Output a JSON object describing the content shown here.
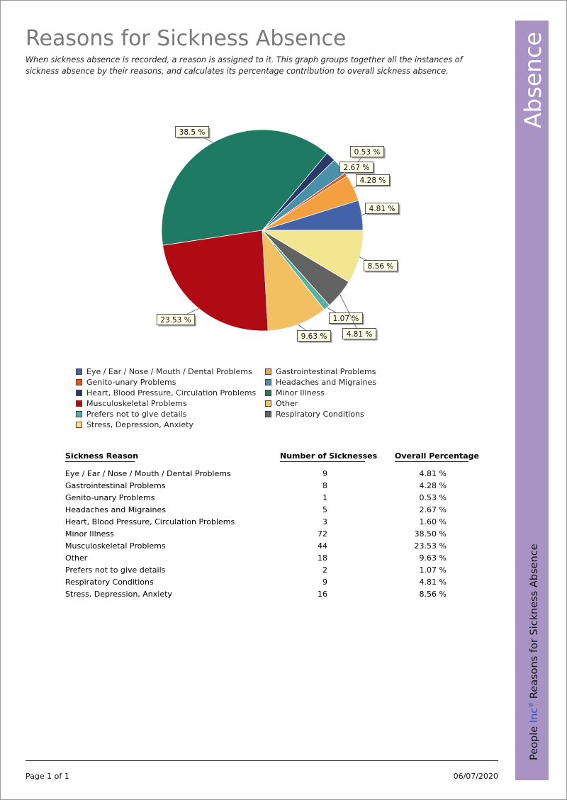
{
  "header": {
    "title": "Reasons for Sickness Absence",
    "subtitle": "When sickness absence is recorded, a reason is assigned to it. This graph groups together all the instances of sickness absence by their reasons, and calculates its percentage contribution to overall sickness absence."
  },
  "side": {
    "title": "Absence",
    "brand_a": "People ",
    "brand_b": "Inc",
    "brand_reg": "®",
    "report_name": " Reasons for Sickness Absence"
  },
  "chart_data": {
    "type": "pie",
    "title": "",
    "slices": [
      {
        "label": "Eye / Ear / Nose / Mouth / Dental Problems",
        "value": 4.81,
        "data_label": "4.81 %",
        "color": "#4462a8"
      },
      {
        "label": "Gastrointestinal Problems",
        "value": 4.28,
        "data_label": "4.28 %",
        "color": "#f4a040"
      },
      {
        "label": "Genito-unary Problems",
        "value": 0.53,
        "data_label": "0.53 %",
        "color": "#e05a20"
      },
      {
        "label": "Headaches and Migraines",
        "value": 2.67,
        "data_label": "2.67 %",
        "color": "#4a90a8"
      },
      {
        "label": "Heart, Blood Pressure, Circulation Problems",
        "value": 1.6,
        "data_label": "",
        "color": "#2a3a68"
      },
      {
        "label": "Minor Illness",
        "value": 38.5,
        "data_label": "38.5 %",
        "color": "#1e7a62"
      },
      {
        "label": "Musculoskeletal Problems",
        "value": 23.53,
        "data_label": "23.53 %",
        "color": "#b00a14"
      },
      {
        "label": "Other",
        "value": 9.63,
        "data_label": "9.63 %",
        "color": "#f2c060"
      },
      {
        "label": "Prefers not to give details",
        "value": 1.07,
        "data_label": "1.07 %",
        "color": "#5ab0a0"
      },
      {
        "label": "Respiratory Conditions",
        "value": 4.81,
        "data_label": "4.81 %",
        "color": "#636363"
      },
      {
        "label": "Stress, Depression, Anxiety",
        "value": 8.56,
        "data_label": "8.56 %",
        "color": "#f2e690"
      }
    ],
    "legend": "bottom",
    "legend_order": [
      [
        "Eye / Ear / Nose / Mouth / Dental Problems",
        "Gastrointestinal Problems"
      ],
      [
        "Genito-unary Problems",
        "Headaches and Migraines"
      ],
      [
        "Heart, Blood Pressure, Circulation Problems",
        "Minor Illness"
      ],
      [
        "Musculoskeletal Problems",
        "Other"
      ],
      [
        "Prefers not to give details",
        "Respiratory Conditions"
      ],
      [
        "Stress, Depression, Anxiety"
      ]
    ]
  },
  "table": {
    "headers": [
      "Sickness Reason",
      "Number of Sicknesses",
      "Overall Percentage"
    ],
    "rows": [
      [
        "Eye / Ear / Nose / Mouth / Dental Problems",
        "9",
        "4.81 %"
      ],
      [
        "Gastrointestinal Problems",
        "8",
        "4.28 %"
      ],
      [
        "Genito-unary Problems",
        "1",
        "0.53 %"
      ],
      [
        "Headaches and Migraines",
        "5",
        "2.67 %"
      ],
      [
        "Heart, Blood Pressure, Circulation Problems",
        "3",
        "1.60 %"
      ],
      [
        "Minor Illness",
        "72",
        "38.50 %"
      ],
      [
        "Musculoskeletal Problems",
        "44",
        "23.53 %"
      ],
      [
        "Other",
        "18",
        "9.63 %"
      ],
      [
        "Prefers not to give details",
        "2",
        "1.07 %"
      ],
      [
        "Respiratory Conditions",
        "9",
        "4.81 %"
      ],
      [
        "Stress, Depression, Anxiety",
        "16",
        "8.56 %"
      ]
    ]
  },
  "footer": {
    "page": "Page 1 of 1",
    "date": "06/07/2020"
  }
}
